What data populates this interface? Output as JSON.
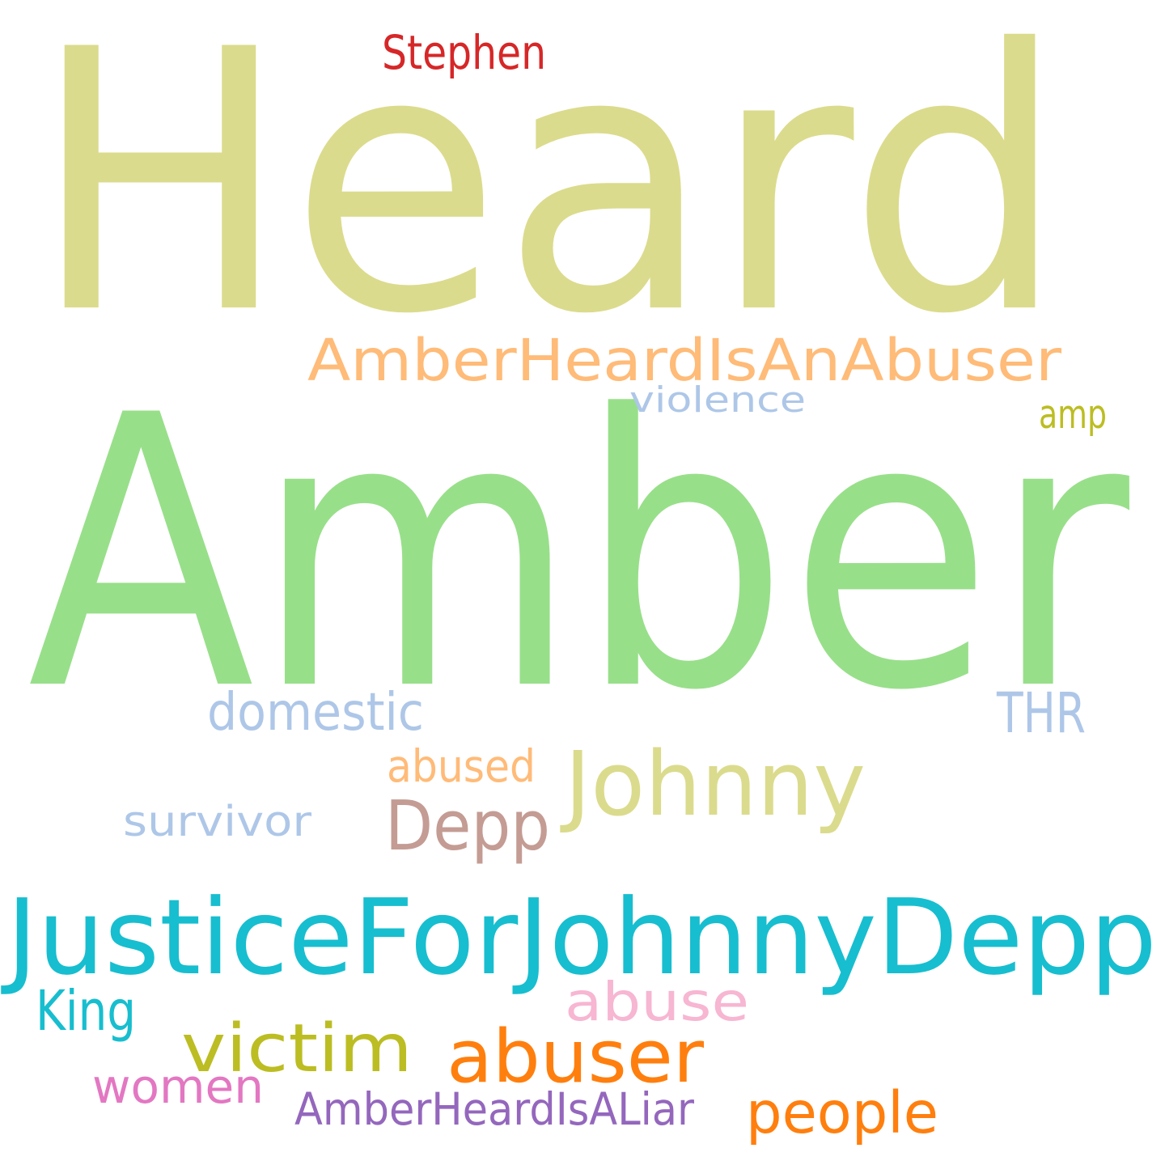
{
  "words": [
    {
      "text": "Heard",
      "color": "#dbdb8d"
    },
    {
      "text": "Amber",
      "color": "#98df8a"
    },
    {
      "text": "AmberHeardIsAnAbuser",
      "color": "#ffbb78"
    },
    {
      "text": "violence",
      "color": "#aec7e8"
    },
    {
      "text": "amp",
      "color": "#bcbd22"
    },
    {
      "text": "Stephen",
      "color": "#d62728"
    },
    {
      "text": "domestic",
      "color": "#aec7e8"
    },
    {
      "text": "THR",
      "color": "#aec7e8"
    },
    {
      "text": "abused",
      "color": "#ffbb78"
    },
    {
      "text": "Johnny",
      "color": "#dbdb8d"
    },
    {
      "text": "Depp",
      "color": "#c49c94"
    },
    {
      "text": "survivor",
      "color": "#aec7e8"
    },
    {
      "text": "JusticeForJohnnyDepp",
      "color": "#17becf"
    },
    {
      "text": "abuse",
      "color": "#f7b6d2"
    },
    {
      "text": "King",
      "color": "#17becf"
    },
    {
      "text": "victim",
      "color": "#bcbd22"
    },
    {
      "text": "abuser",
      "color": "#ff7f0e"
    },
    {
      "text": "women",
      "color": "#e377c2"
    },
    {
      "text": "AmberHeardIsALiar",
      "color": "#9467bd"
    },
    {
      "text": "people",
      "color": "#ff7f0e"
    }
  ]
}
